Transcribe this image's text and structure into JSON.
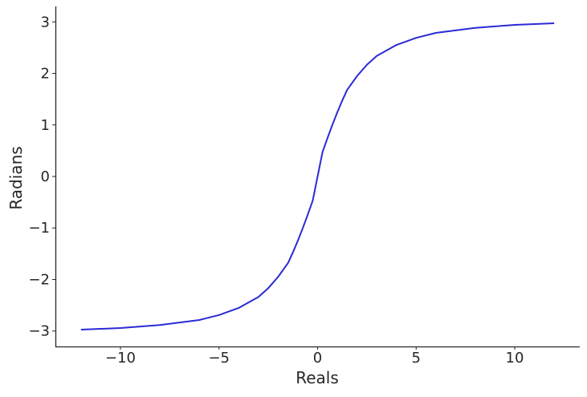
{
  "chart_data": {
    "type": "line",
    "title": "",
    "xlabel": "Reals",
    "ylabel": "Radians",
    "xlim": [
      -13.3,
      13.3
    ],
    "ylim": [
      -3.3,
      3.3
    ],
    "x_ticks": [
      -10,
      -5,
      0,
      5,
      10
    ],
    "x_tick_labels": [
      "−10",
      "−5",
      "0",
      "5",
      "10"
    ],
    "y_ticks": [
      -3,
      -2,
      -1,
      0,
      1,
      2,
      3
    ],
    "y_tick_labels": [
      "−3",
      "−2",
      "−1",
      "0",
      "1",
      "2",
      "3"
    ],
    "grid": false,
    "legend": "none",
    "series": [
      {
        "color": "#2a2ad6",
        "x": [
          -12,
          -10,
          -8,
          -6,
          -5,
          -4,
          -3,
          -2.5,
          -2,
          -1.5,
          -1.25,
          -1,
          -0.75,
          -0.5,
          -0.25,
          0,
          0.25,
          0.5,
          0.75,
          1,
          1.25,
          1.5,
          2,
          2.5,
          3,
          4,
          5,
          6,
          8,
          10,
          12
        ],
        "y": [
          -2.974,
          -2.942,
          -2.884,
          -2.786,
          -2.69,
          -2.552,
          -2.339,
          -2.167,
          -1.948,
          -1.68,
          -1.472,
          -1.245,
          -1.001,
          -0.742,
          -0.473,
          0.0,
          0.473,
          0.742,
          1.001,
          1.245,
          1.472,
          1.68,
          1.948,
          2.167,
          2.339,
          2.552,
          2.69,
          2.786,
          2.884,
          2.942,
          2.974
        ]
      }
    ]
  }
}
